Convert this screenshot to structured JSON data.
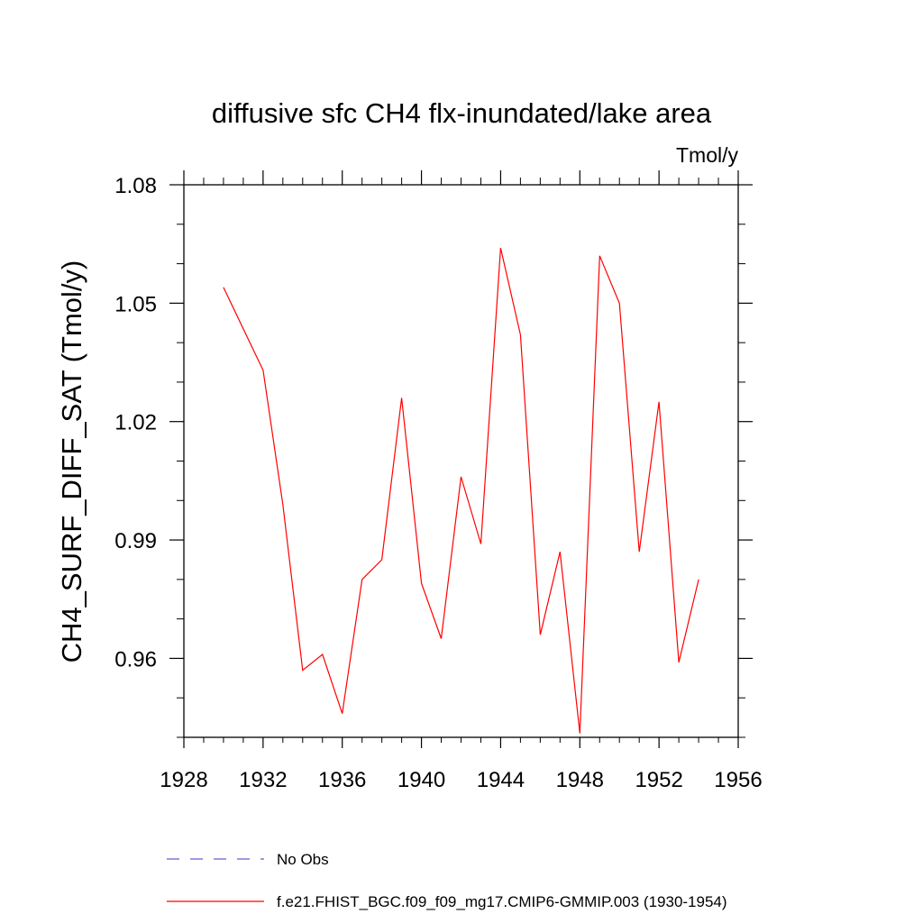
{
  "chart_data": {
    "type": "line",
    "title": "diffusive sfc CH4 flx-inundated/lake area",
    "units": "Tmol/y",
    "ylabel": "CH4_SURF_DIFF_SAT  (Tmol/y)",
    "xlabel": "",
    "xlim": [
      1928,
      1956
    ],
    "ylim": [
      0.94,
      1.08
    ],
    "x_ticks": [
      1928,
      1932,
      1936,
      1940,
      1944,
      1948,
      1952,
      1956
    ],
    "x_tick_labels": [
      "1928",
      "1932",
      "1936",
      "1940",
      "1944",
      "1948",
      "1952",
      "1956"
    ],
    "y_ticks": [
      0.96,
      0.99,
      1.02,
      1.05,
      1.08
    ],
    "y_tick_labels": [
      "0.96",
      "0.99",
      "1.02",
      "1.05",
      "1.08"
    ],
    "grid": false,
    "legend_position": "bottom",
    "series": [
      {
        "name": "f.e21.FHIST_BGC.f09_f09_mg17.CMIP6-GMMIP.003 (1930-1954)",
        "color": "#ff0000",
        "style": "solid",
        "x": [
          1930,
          1932,
          1933,
          1934,
          1935,
          1936,
          1937,
          1938,
          1939,
          1940,
          1941,
          1942,
          1943,
          1944,
          1945,
          1946,
          1947,
          1948,
          1949,
          1950,
          1951,
          1952,
          1953,
          1954
        ],
        "y": [
          1.054,
          1.033,
          0.999,
          0.957,
          0.961,
          0.946,
          0.98,
          0.985,
          1.026,
          0.979,
          0.965,
          1.006,
          0.989,
          1.064,
          1.042,
          0.966,
          0.987,
          0.941,
          1.062,
          1.05,
          0.987,
          1.025,
          0.959,
          0.98
        ]
      }
    ],
    "legend": [
      {
        "name": "No Obs",
        "color": "#6a5acd",
        "style": "dashed"
      },
      {
        "name": "f.e21.FHIST_BGC.f09_f09_mg17.CMIP6-GMMIP.003 (1930-1954)",
        "color": "#ff0000",
        "style": "solid"
      }
    ]
  }
}
